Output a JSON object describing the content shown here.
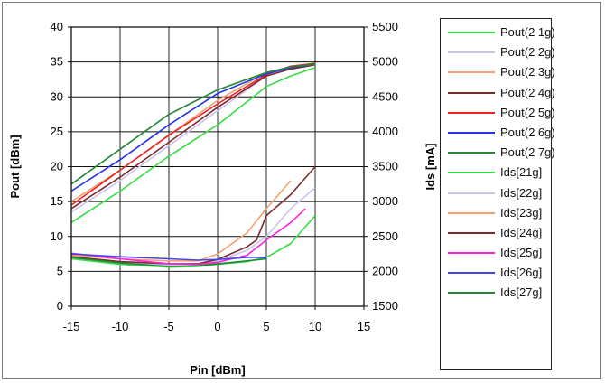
{
  "chart_data": {
    "type": "line",
    "xlabel": "Pin [dBm]",
    "ylabel": "Pout [dBm]",
    "y2label": "Ids [mA]",
    "xlim": [
      -15,
      15
    ],
    "ylim": [
      0,
      40
    ],
    "y2lim": [
      1500,
      5500
    ],
    "xticks": [
      "-15",
      "-10",
      "-5",
      "0",
      "5",
      "10",
      "15"
    ],
    "yticks": [
      "0",
      "5",
      "10",
      "15",
      "20",
      "25",
      "30",
      "35",
      "40"
    ],
    "y2ticks": [
      "1500",
      "2000",
      "2500",
      "3000",
      "3500",
      "4000",
      "4500",
      "5000",
      "5500"
    ],
    "grid": true,
    "legend_position": "right",
    "series": [
      {
        "name": "Pout(2 1g)",
        "axis": "left",
        "color": "#33dd44",
        "x": [
          -15,
          -10,
          -5,
          0,
          5,
          7.5,
          10
        ],
        "y": [
          12,
          16.5,
          21.5,
          26,
          31.5,
          33,
          34.2
        ]
      },
      {
        "name": "Pout(2 2g)",
        "axis": "left",
        "color": "#c8c4f0",
        "x": [
          -15,
          -10,
          -5,
          0,
          5,
          7.5,
          10
        ],
        "y": [
          13.5,
          18,
          23,
          28,
          33,
          34,
          34.6
        ]
      },
      {
        "name": "Pout(2 3g)",
        "axis": "left",
        "color": "#f5a070",
        "x": [
          -15,
          -10,
          -5,
          0,
          5,
          7.5,
          10
        ],
        "y": [
          15,
          19.5,
          24.5,
          29.5,
          33.5,
          34.2,
          34.7
        ]
      },
      {
        "name": "Pout(2 4g)",
        "axis": "left",
        "color": "#7a2a2a",
        "x": [
          -15,
          -10,
          -5,
          0,
          5,
          7.5,
          10
        ],
        "y": [
          14,
          18.5,
          23.5,
          28.5,
          33,
          34,
          34.6
        ]
      },
      {
        "name": "Pout(2 5g)",
        "axis": "left",
        "color": "#ee2222",
        "x": [
          -15,
          -10,
          -5,
          0,
          5,
          7.5,
          10
        ],
        "y": [
          14.5,
          19.5,
          24.5,
          29,
          33.2,
          34.4,
          34.8
        ]
      },
      {
        "name": "Pout(2 6g)",
        "axis": "left",
        "color": "#2233ee",
        "x": [
          -15,
          -10,
          -5,
          0,
          5,
          7.5,
          10
        ],
        "y": [
          16.5,
          21,
          26,
          30.5,
          33.3,
          34.2,
          34.7
        ]
      },
      {
        "name": "Pout(2 7g)",
        "axis": "left",
        "color": "#228833",
        "x": [
          -15,
          -10,
          -5,
          0,
          5,
          7.5,
          10
        ],
        "y": [
          17.5,
          22.5,
          27.5,
          31,
          33.5,
          34.3,
          34.7
        ]
      },
      {
        "name": "Ids[21g]",
        "axis": "right",
        "color": "#33dd44",
        "x": [
          -15,
          -10,
          -5,
          -2,
          0,
          3,
          5,
          7.5,
          10
        ],
        "y": [
          2180,
          2100,
          2060,
          2070,
          2100,
          2140,
          2200,
          2400,
          2800
        ]
      },
      {
        "name": "Ids[22g]",
        "axis": "right",
        "color": "#c8c4f0",
        "x": [
          -15,
          -10,
          -5,
          -2,
          0,
          3,
          5,
          7.5,
          10
        ],
        "y": [
          2200,
          2130,
          2090,
          2100,
          2150,
          2300,
          2500,
          2900,
          3200
        ]
      },
      {
        "name": "Ids[23g]",
        "axis": "right",
        "color": "#f5a070",
        "x": [
          -15,
          -10,
          -5,
          -2,
          0,
          3,
          5,
          7.5
        ],
        "y": [
          2230,
          2180,
          2150,
          2150,
          2250,
          2550,
          2900,
          3300
        ]
      },
      {
        "name": "Ids[24g]",
        "axis": "right",
        "color": "#7a2a2a",
        "x": [
          -15,
          -10,
          -5,
          -2,
          0,
          3,
          4,
          5,
          7.5,
          10
        ],
        "y": [
          2210,
          2140,
          2110,
          2110,
          2170,
          2350,
          2450,
          2800,
          3100,
          3500
        ]
      },
      {
        "name": "Ids[25g]",
        "axis": "right",
        "color": "#ff22dd",
        "x": [
          -15,
          -10,
          -5,
          -2,
          0,
          3,
          5,
          7.5,
          9
        ],
        "y": [
          2260,
          2180,
          2110,
          2100,
          2130,
          2230,
          2450,
          2700,
          2900
        ]
      },
      {
        "name": "Ids[26g]",
        "axis": "right",
        "color": "#4444ee",
        "x": [
          -15,
          -10,
          -5,
          -2,
          0,
          3,
          5
        ],
        "y": [
          2250,
          2210,
          2180,
          2160,
          2170,
          2200,
          2200
        ]
      },
      {
        "name": "Ids[27g]",
        "axis": "right",
        "color": "#228833",
        "x": [
          -15,
          -10,
          -5,
          -2,
          0,
          3,
          5
        ],
        "y": [
          2200,
          2120,
          2070,
          2080,
          2110,
          2150,
          2180
        ]
      }
    ]
  }
}
